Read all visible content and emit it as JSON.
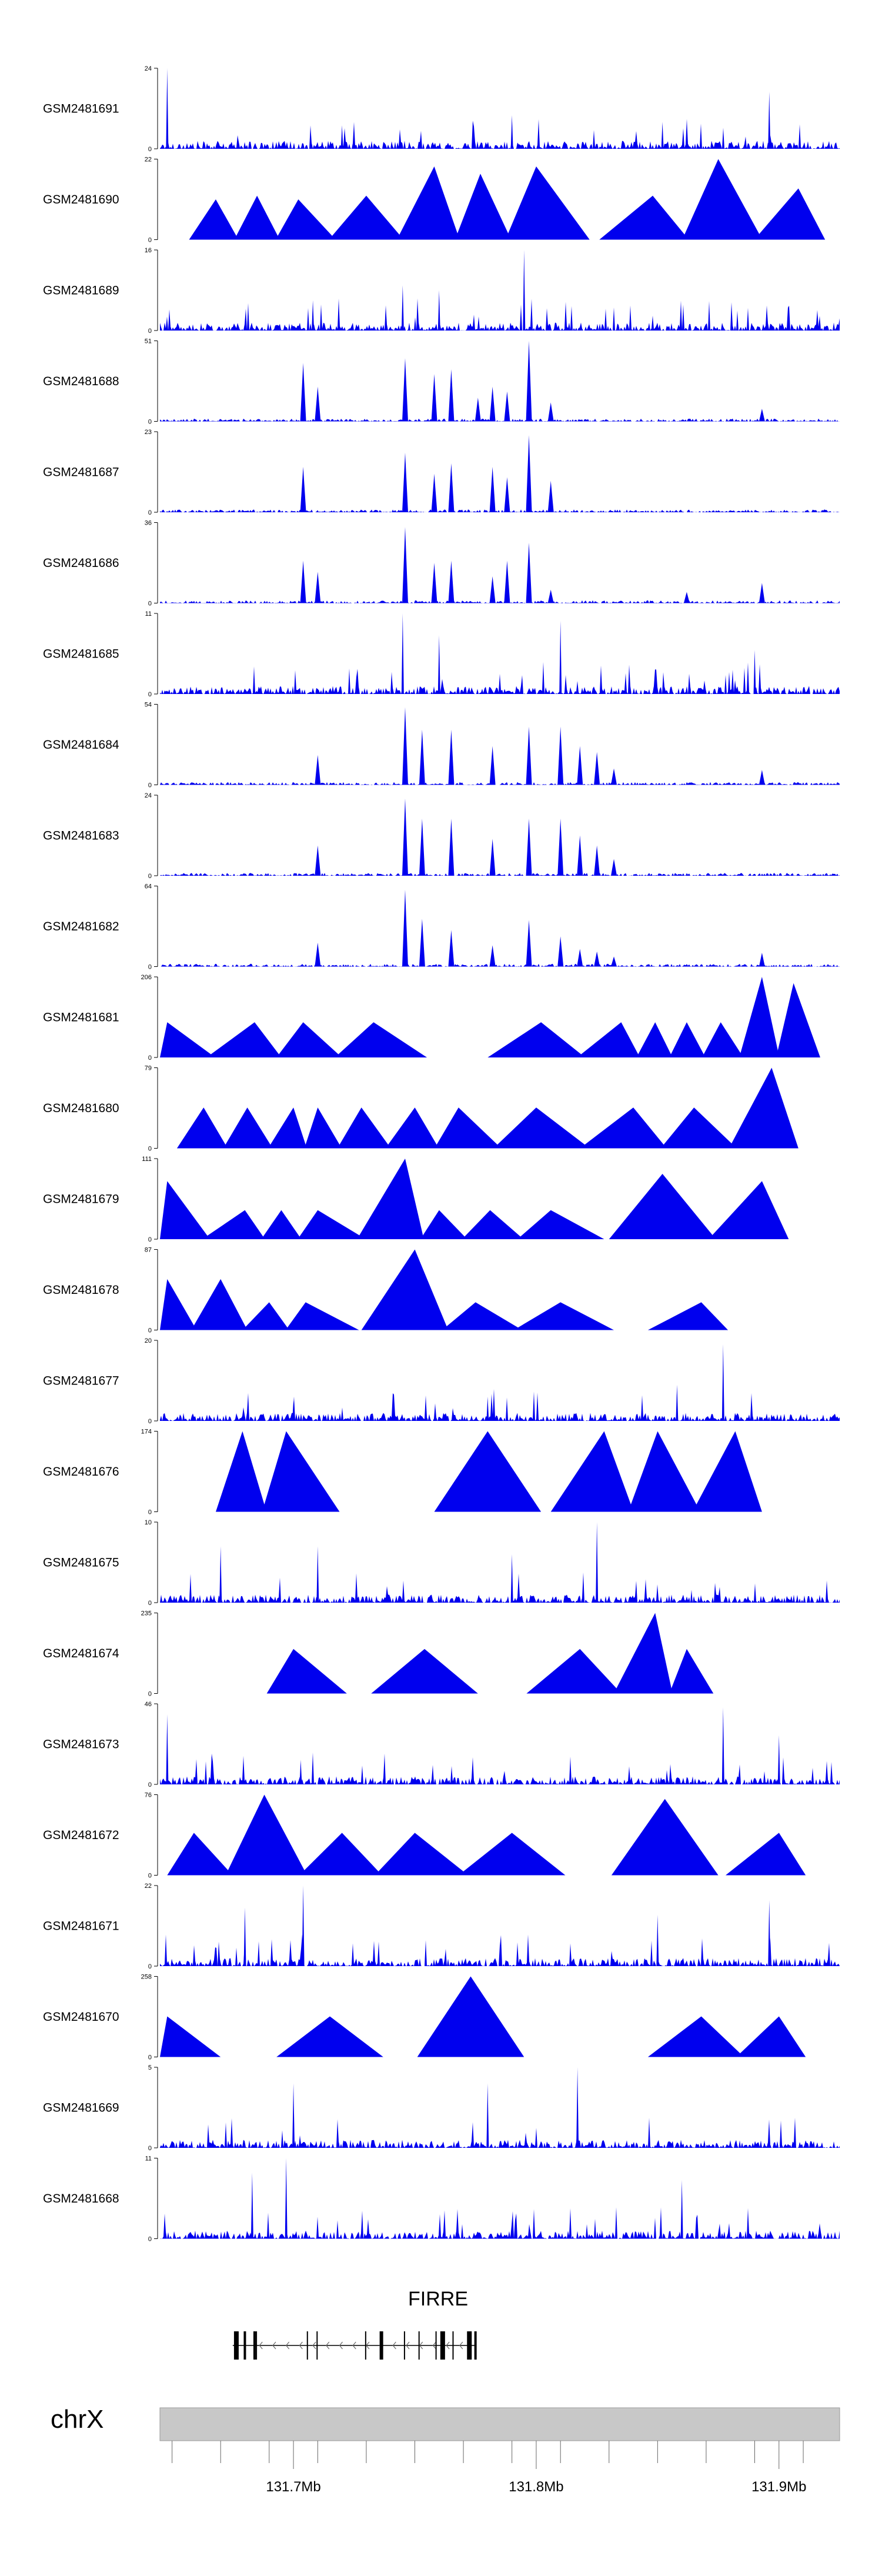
{
  "chart_data": {
    "type": "area",
    "title": "",
    "xlabel": "",
    "ylabel": "",
    "chromosome": "chrX",
    "gene": "FIRRE",
    "xlim": [
      131.645,
      131.925
    ],
    "axis_ticks": [
      131.7,
      131.8,
      131.9
    ],
    "axis_tick_labels": [
      "131.7Mb",
      "131.8Mb",
      "131.9Mb"
    ],
    "tracks": [
      {
        "name": "GSM2481691",
        "ymax": 24,
        "ymin": 0,
        "style": "dense",
        "peaks": [
          {
            "x": 131.648,
            "y": 24
          },
          {
            "x": 131.896,
            "y": 17
          },
          {
            "x": 131.852,
            "y": 8
          },
          {
            "x": 131.79,
            "y": 10
          },
          {
            "x": 131.72,
            "y": 7
          }
        ]
      },
      {
        "name": "GSM2481690",
        "ymax": 22,
        "ymin": 0,
        "style": "triangles",
        "peaks": [
          {
            "x": 131.668,
            "y": 11
          },
          {
            "x": 131.685,
            "y": 12
          },
          {
            "x": 131.702,
            "y": 11
          },
          {
            "x": 131.73,
            "y": 12
          },
          {
            "x": 131.758,
            "y": 20
          },
          {
            "x": 131.777,
            "y": 18
          },
          {
            "x": 131.8,
            "y": 20
          },
          {
            "x": 131.848,
            "y": 12
          },
          {
            "x": 131.875,
            "y": 22
          },
          {
            "x": 131.908,
            "y": 14
          }
        ]
      },
      {
        "name": "GSM2481689",
        "ymax": 16,
        "ymin": 0,
        "style": "dense",
        "peaks": [
          {
            "x": 131.795,
            "y": 16
          },
          {
            "x": 131.745,
            "y": 9
          },
          {
            "x": 131.76,
            "y": 8
          },
          {
            "x": 131.708,
            "y": 6
          }
        ]
      },
      {
        "name": "GSM2481688",
        "ymax": 51,
        "ymin": 0,
        "style": "sharp",
        "peaks": [
          {
            "x": 131.704,
            "y": 37
          },
          {
            "x": 131.71,
            "y": 22
          },
          {
            "x": 131.746,
            "y": 40
          },
          {
            "x": 131.758,
            "y": 30
          },
          {
            "x": 131.765,
            "y": 33
          },
          {
            "x": 131.776,
            "y": 15
          },
          {
            "x": 131.782,
            "y": 22
          },
          {
            "x": 131.788,
            "y": 19
          },
          {
            "x": 131.797,
            "y": 51
          },
          {
            "x": 131.806,
            "y": 12
          },
          {
            "x": 131.893,
            "y": 8
          }
        ]
      },
      {
        "name": "GSM2481687",
        "ymax": 23,
        "ymin": 0,
        "style": "sharp",
        "peaks": [
          {
            "x": 131.704,
            "y": 13
          },
          {
            "x": 131.746,
            "y": 17
          },
          {
            "x": 131.758,
            "y": 11
          },
          {
            "x": 131.765,
            "y": 14
          },
          {
            "x": 131.782,
            "y": 13
          },
          {
            "x": 131.788,
            "y": 10
          },
          {
            "x": 131.797,
            "y": 22
          },
          {
            "x": 131.806,
            "y": 9
          }
        ]
      },
      {
        "name": "GSM2481686",
        "ymax": 36,
        "ymin": 0,
        "style": "sharp",
        "peaks": [
          {
            "x": 131.704,
            "y": 19
          },
          {
            "x": 131.71,
            "y": 14
          },
          {
            "x": 131.746,
            "y": 34
          },
          {
            "x": 131.758,
            "y": 18
          },
          {
            "x": 131.765,
            "y": 19
          },
          {
            "x": 131.782,
            "y": 12
          },
          {
            "x": 131.788,
            "y": 19
          },
          {
            "x": 131.797,
            "y": 27
          },
          {
            "x": 131.806,
            "y": 6
          },
          {
            "x": 131.862,
            "y": 5
          },
          {
            "x": 131.893,
            "y": 9
          }
        ]
      },
      {
        "name": "GSM2481685",
        "ymax": 11,
        "ymin": 0,
        "style": "dense",
        "peaks": [
          {
            "x": 131.745,
            "y": 11
          },
          {
            "x": 131.81,
            "y": 10
          },
          {
            "x": 131.76,
            "y": 8
          },
          {
            "x": 131.89,
            "y": 6
          }
        ]
      },
      {
        "name": "GSM2481684",
        "ymax": 54,
        "ymin": 0,
        "style": "sharp",
        "peaks": [
          {
            "x": 131.71,
            "y": 20
          },
          {
            "x": 131.746,
            "y": 52
          },
          {
            "x": 131.753,
            "y": 37
          },
          {
            "x": 131.765,
            "y": 37
          },
          {
            "x": 131.782,
            "y": 26
          },
          {
            "x": 131.797,
            "y": 39
          },
          {
            "x": 131.81,
            "y": 39
          },
          {
            "x": 131.818,
            "y": 26
          },
          {
            "x": 131.825,
            "y": 22
          },
          {
            "x": 131.832,
            "y": 11
          },
          {
            "x": 131.893,
            "y": 10
          }
        ]
      },
      {
        "name": "GSM2481683",
        "ymax": 24,
        "ymin": 0,
        "style": "sharp",
        "peaks": [
          {
            "x": 131.71,
            "y": 9
          },
          {
            "x": 131.746,
            "y": 23
          },
          {
            "x": 131.753,
            "y": 17
          },
          {
            "x": 131.765,
            "y": 17
          },
          {
            "x": 131.782,
            "y": 11
          },
          {
            "x": 131.797,
            "y": 17
          },
          {
            "x": 131.81,
            "y": 17
          },
          {
            "x": 131.818,
            "y": 12
          },
          {
            "x": 131.825,
            "y": 9
          },
          {
            "x": 131.832,
            "y": 5
          }
        ]
      },
      {
        "name": "GSM2481682",
        "ymax": 64,
        "ymin": 0,
        "style": "sharp",
        "peaks": [
          {
            "x": 131.71,
            "y": 19
          },
          {
            "x": 131.746,
            "y": 61
          },
          {
            "x": 131.753,
            "y": 38
          },
          {
            "x": 131.765,
            "y": 29
          },
          {
            "x": 131.782,
            "y": 17
          },
          {
            "x": 131.797,
            "y": 37
          },
          {
            "x": 131.81,
            "y": 24
          },
          {
            "x": 131.818,
            "y": 14
          },
          {
            "x": 131.825,
            "y": 12
          },
          {
            "x": 131.832,
            "y": 8
          },
          {
            "x": 131.893,
            "y": 11
          }
        ]
      },
      {
        "name": "GSM2481681",
        "ymax": 206,
        "ymin": 0,
        "style": "triangles",
        "peaks": [
          {
            "x": 131.648,
            "y": 90
          },
          {
            "x": 131.684,
            "y": 90
          },
          {
            "x": 131.704,
            "y": 90
          },
          {
            "x": 131.733,
            "y": 90
          },
          {
            "x": 131.802,
            "y": 90
          },
          {
            "x": 131.835,
            "y": 90
          },
          {
            "x": 131.849,
            "y": 90
          },
          {
            "x": 131.862,
            "y": 90
          },
          {
            "x": 131.876,
            "y": 90
          },
          {
            "x": 131.893,
            "y": 206
          },
          {
            "x": 131.906,
            "y": 190
          }
        ]
      },
      {
        "name": "GSM2481680",
        "ymax": 79,
        "ymin": 0,
        "style": "triangles",
        "peaks": [
          {
            "x": 131.663,
            "y": 40
          },
          {
            "x": 131.681,
            "y": 40
          },
          {
            "x": 131.7,
            "y": 40
          },
          {
            "x": 131.71,
            "y": 40
          },
          {
            "x": 131.728,
            "y": 40
          },
          {
            "x": 131.75,
            "y": 40
          },
          {
            "x": 131.768,
            "y": 40
          },
          {
            "x": 131.8,
            "y": 40
          },
          {
            "x": 131.84,
            "y": 40
          },
          {
            "x": 131.865,
            "y": 40
          },
          {
            "x": 131.897,
            "y": 79
          }
        ]
      },
      {
        "name": "GSM2481679",
        "ymax": 111,
        "ymin": 0,
        "style": "triangles",
        "peaks": [
          {
            "x": 131.648,
            "y": 80
          },
          {
            "x": 131.68,
            "y": 40
          },
          {
            "x": 131.695,
            "y": 40
          },
          {
            "x": 131.71,
            "y": 40
          },
          {
            "x": 131.746,
            "y": 111
          },
          {
            "x": 131.76,
            "y": 40
          },
          {
            "x": 131.781,
            "y": 40
          },
          {
            "x": 131.806,
            "y": 40
          },
          {
            "x": 131.852,
            "y": 90
          },
          {
            "x": 131.893,
            "y": 80
          }
        ]
      },
      {
        "name": "GSM2481678",
        "ymax": 87,
        "ymin": 0,
        "style": "triangles",
        "peaks": [
          {
            "x": 131.648,
            "y": 55
          },
          {
            "x": 131.67,
            "y": 55
          },
          {
            "x": 131.69,
            "y": 30
          },
          {
            "x": 131.705,
            "y": 30
          },
          {
            "x": 131.75,
            "y": 87
          },
          {
            "x": 131.775,
            "y": 30
          },
          {
            "x": 131.81,
            "y": 30
          },
          {
            "x": 131.868,
            "y": 30
          }
        ]
      },
      {
        "name": "GSM2481677",
        "ymax": 20,
        "ymin": 0,
        "style": "dense",
        "peaks": [
          {
            "x": 131.877,
            "y": 19
          },
          {
            "x": 131.858,
            "y": 9
          },
          {
            "x": 131.78,
            "y": 6
          },
          {
            "x": 131.7,
            "y": 5
          }
        ]
      },
      {
        "name": "GSM2481676",
        "ymax": 174,
        "ymin": 0,
        "style": "triangles",
        "peaks": [
          {
            "x": 131.679,
            "y": 174
          },
          {
            "x": 131.697,
            "y": 174
          },
          {
            "x": 131.78,
            "y": 174
          },
          {
            "x": 131.828,
            "y": 174
          },
          {
            "x": 131.85,
            "y": 174
          },
          {
            "x": 131.882,
            "y": 174
          }
        ]
      },
      {
        "name": "GSM2481675",
        "ymax": 10,
        "ymin": 0,
        "style": "dense",
        "peaks": [
          {
            "x": 131.825,
            "y": 10
          },
          {
            "x": 131.71,
            "y": 7
          },
          {
            "x": 131.67,
            "y": 7
          },
          {
            "x": 131.79,
            "y": 6
          }
        ]
      },
      {
        "name": "GSM2481674",
        "ymax": 235,
        "ymin": 0,
        "style": "triangles",
        "peaks": [
          {
            "x": 131.7,
            "y": 130
          },
          {
            "x": 131.754,
            "y": 130
          },
          {
            "x": 131.818,
            "y": 130
          },
          {
            "x": 131.849,
            "y": 235
          },
          {
            "x": 131.862,
            "y": 130
          }
        ]
      },
      {
        "name": "GSM2481673",
        "ymax": 46,
        "ymin": 0,
        "style": "dense",
        "peaks": [
          {
            "x": 131.877,
            "y": 44
          },
          {
            "x": 131.648,
            "y": 40
          },
          {
            "x": 131.9,
            "y": 28
          },
          {
            "x": 131.703,
            "y": 14
          }
        ]
      },
      {
        "name": "GSM2481672",
        "ymax": 76,
        "ymin": 0,
        "style": "triangles",
        "peaks": [
          {
            "x": 131.659,
            "y": 40
          },
          {
            "x": 131.688,
            "y": 76
          },
          {
            "x": 131.72,
            "y": 40
          },
          {
            "x": 131.75,
            "y": 40
          },
          {
            "x": 131.79,
            "y": 40
          },
          {
            "x": 131.853,
            "y": 72
          },
          {
            "x": 131.9,
            "y": 40
          }
        ]
      },
      {
        "name": "GSM2481671",
        "ymax": 22,
        "ymin": 0,
        "style": "dense",
        "peaks": [
          {
            "x": 131.704,
            "y": 22
          },
          {
            "x": 131.68,
            "y": 16
          },
          {
            "x": 131.896,
            "y": 18
          },
          {
            "x": 131.85,
            "y": 14
          }
        ]
      },
      {
        "name": "GSM2481670",
        "ymax": 258,
        "ymin": 0,
        "style": "triangles",
        "peaks": [
          {
            "x": 131.648,
            "y": 130
          },
          {
            "x": 131.715,
            "y": 130
          },
          {
            "x": 131.773,
            "y": 258
          },
          {
            "x": 131.868,
            "y": 130
          },
          {
            "x": 131.9,
            "y": 130
          }
        ]
      },
      {
        "name": "GSM2481669",
        "ymax": 5,
        "ymin": 0,
        "style": "dense",
        "peaks": [
          {
            "x": 131.817,
            "y": 5
          },
          {
            "x": 131.78,
            "y": 4
          },
          {
            "x": 131.7,
            "y": 4
          }
        ]
      },
      {
        "name": "GSM2481668",
        "ymax": 11,
        "ymin": 0,
        "style": "dense",
        "peaks": [
          {
            "x": 131.697,
            "y": 11
          },
          {
            "x": 131.683,
            "y": 9
          },
          {
            "x": 131.86,
            "y": 8
          }
        ]
      }
    ]
  }
}
